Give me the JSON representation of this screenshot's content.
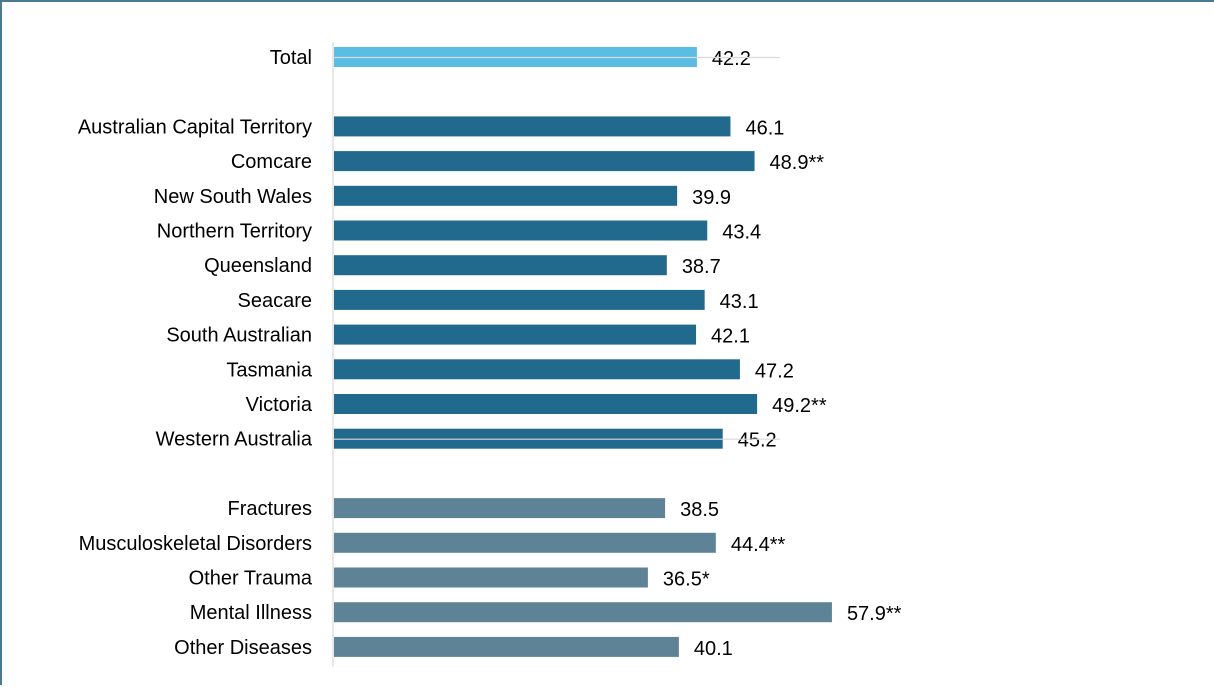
{
  "chart_data": {
    "type": "bar",
    "orientation": "horizontal",
    "title": "",
    "xlabel": "",
    "ylabel": "",
    "xlim": [
      0,
      70
    ],
    "grid": false,
    "legend": "none",
    "groups": [
      {
        "color": "#5bbde4",
        "items": [
          {
            "category": "Total",
            "value": 42.2,
            "label": "42.2"
          }
        ]
      },
      {
        "color": "#216a8e",
        "items": [
          {
            "category": "Australian Capital Territory",
            "value": 46.1,
            "label": "46.1"
          },
          {
            "category": "Comcare",
            "value": 48.9,
            "label": "48.9**"
          },
          {
            "category": "New South Wales",
            "value": 39.9,
            "label": "39.9"
          },
          {
            "category": "Northern Territory",
            "value": 43.4,
            "label": "43.4"
          },
          {
            "category": "Queensland",
            "value": 38.7,
            "label": "38.7"
          },
          {
            "category": "Seacare",
            "value": 43.1,
            "label": "43.1"
          },
          {
            "category": "South Australian",
            "value": 42.1,
            "label": "42.1"
          },
          {
            "category": "Tasmania",
            "value": 47.2,
            "label": "47.2"
          },
          {
            "category": "Victoria",
            "value": 49.2,
            "label": "49.2**"
          },
          {
            "category": "Western Australia",
            "value": 45.2,
            "label": "45.2"
          }
        ]
      },
      {
        "color": "#5e8396",
        "items": [
          {
            "category": "Fractures",
            "value": 38.5,
            "label": "38.5"
          },
          {
            "category": "Musculoskeletal Disorders",
            "value": 44.4,
            "label": "44.4**"
          },
          {
            "category": "Other Trauma",
            "value": 36.5,
            "label": "36.5*"
          },
          {
            "category": "Mental Illness",
            "value": 57.9,
            "label": "57.9**"
          },
          {
            "category": "Other Diseases",
            "value": 40.1,
            "label": "40.1"
          }
        ]
      }
    ]
  }
}
